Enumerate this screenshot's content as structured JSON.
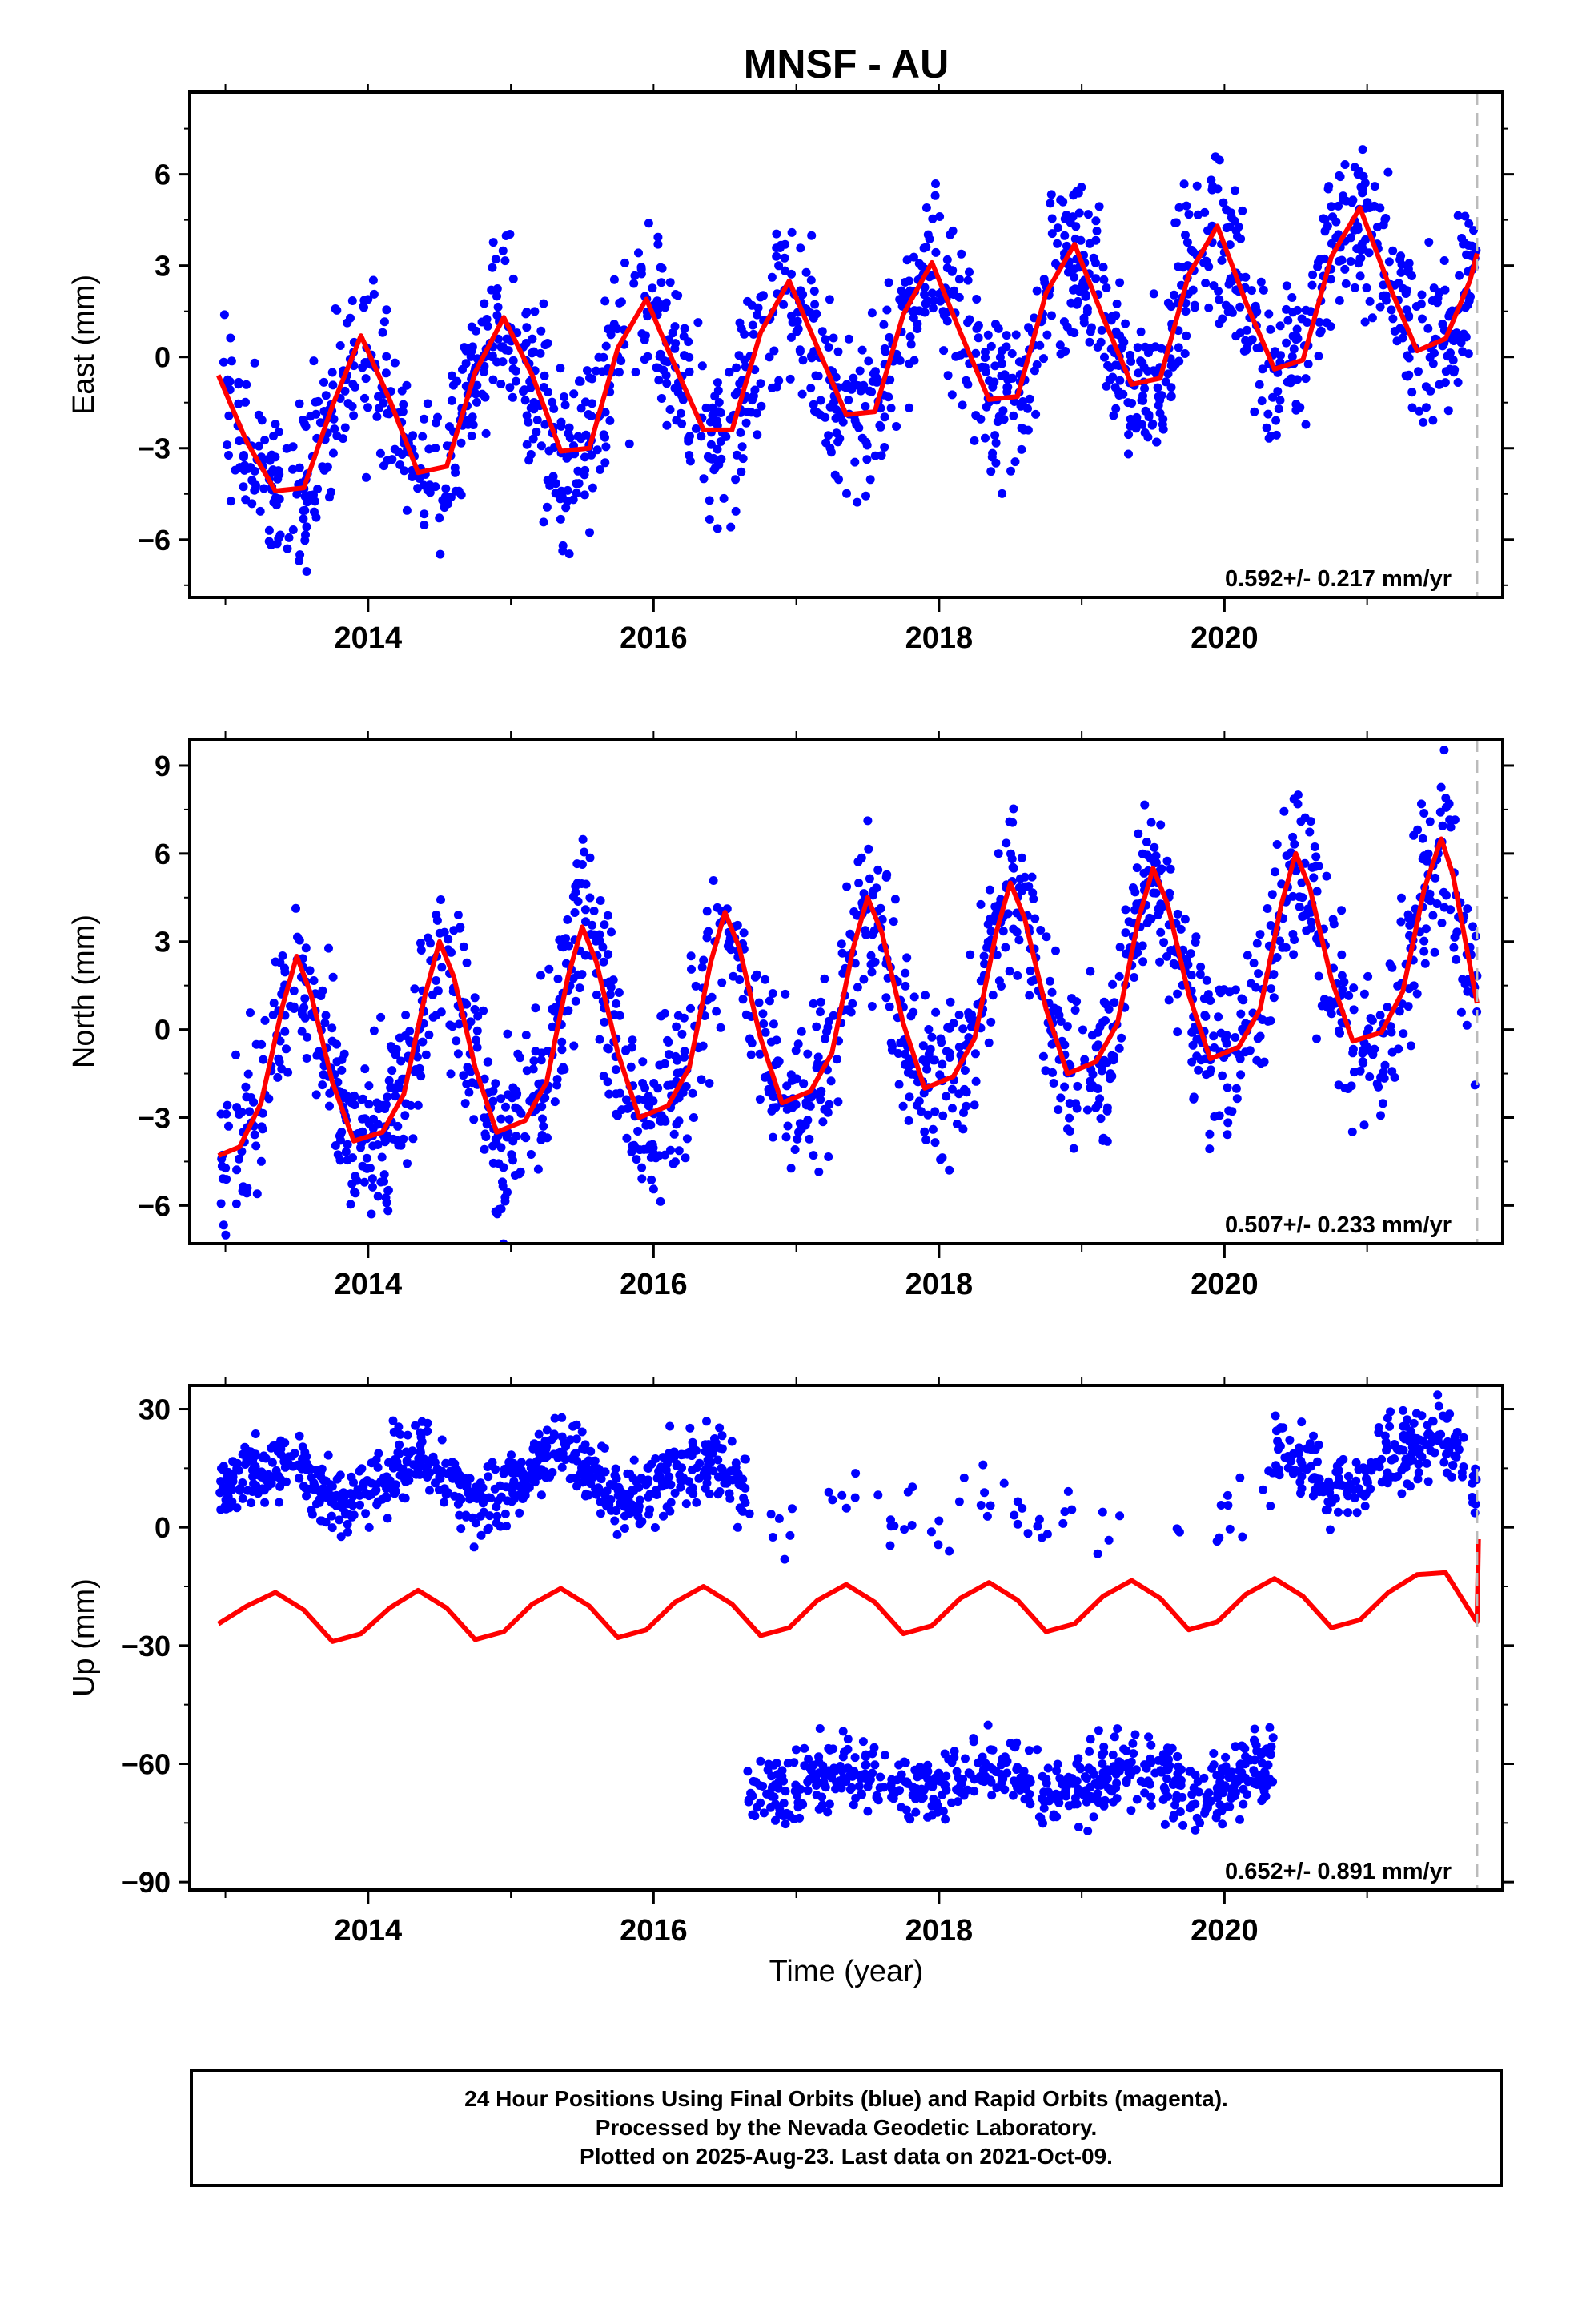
{
  "chart_data": {
    "title": "MNSF - AU",
    "type": "scatter",
    "x_tick_labels": [
      "2014",
      "2016",
      "2018",
      "2020"
    ],
    "x_axis_label": "Time (year)",
    "xlim": [
      2012.75,
      2021.95
    ],
    "last_data_marker": 2021.77,
    "colors": {
      "points": "#0000ff",
      "fit": "#ff0000",
      "marker": "#bbbbbb",
      "axes": "#000000"
    },
    "panels": [
      {
        "name": "east",
        "ylabel": "East (mm)",
        "ylim": [
          -7.9,
          8.7
        ],
        "yticks": [
          -6,
          -3,
          0,
          3,
          6
        ],
        "ytick_labels": [
          "−6",
          "−3",
          "0",
          "3",
          "6"
        ],
        "rate_label": "0.592+/- 0.217 mm/yr",
        "fit_series": {
          "x": [
            2012.95,
            2013.15,
            2013.35,
            2013.55,
            2013.75,
            2013.95,
            2014.15,
            2014.35,
            2014.55,
            2014.75,
            2014.95,
            2015.15,
            2015.35,
            2015.55,
            2015.75,
            2015.95,
            2016.15,
            2016.35,
            2016.55,
            2016.75,
            2016.95,
            2017.15,
            2017.35,
            2017.55,
            2017.75,
            2017.95,
            2018.15,
            2018.35,
            2018.55,
            2018.75,
            2018.95,
            2019.15,
            2019.35,
            2019.55,
            2019.75,
            2019.95,
            2020.15,
            2020.35,
            2020.55,
            2020.75,
            2020.95,
            2021.15,
            2021.35,
            2021.55,
            2021.72,
            2021.77
          ],
          "y": [
            -0.6,
            -2.8,
            -4.4,
            -4.3,
            -1.6,
            0.7,
            -1.4,
            -3.8,
            -3.6,
            -0.5,
            1.3,
            -0.6,
            -3.1,
            -3.0,
            0.3,
            1.9,
            -0.3,
            -2.4,
            -2.4,
            0.8,
            2.5,
            0.3,
            -1.9,
            -1.8,
            1.4,
            3.1,
            0.8,
            -1.4,
            -1.3,
            2.1,
            3.7,
            1.3,
            -0.9,
            -0.7,
            2.7,
            4.3,
            1.8,
            -0.4,
            -0.1,
            3.3,
            4.9,
            2.4,
            0.2,
            0.6,
            2.5,
            3.4
          ]
        }
      },
      {
        "name": "north",
        "ylabel": "North (mm)",
        "ylim": [
          -7.3,
          9.9
        ],
        "yticks": [
          -6,
          -3,
          0,
          3,
          6,
          9
        ],
        "ytick_labels": [
          "−6",
          "−3",
          "0",
          "3",
          "6",
          "9"
        ],
        "rate_label": "0.507+/- 0.233 mm/yr",
        "fit_series": {
          "x": [
            2012.95,
            2013.1,
            2013.25,
            2013.4,
            2013.5,
            2013.6,
            2013.75,
            2013.9,
            2014.1,
            2014.25,
            2014.4,
            2014.5,
            2014.6,
            2014.75,
            2014.9,
            2015.1,
            2015.25,
            2015.4,
            2015.5,
            2015.6,
            2015.75,
            2015.9,
            2016.1,
            2016.25,
            2016.4,
            2016.5,
            2016.6,
            2016.75,
            2016.9,
            2017.1,
            2017.25,
            2017.4,
            2017.5,
            2017.6,
            2017.75,
            2017.9,
            2018.1,
            2018.25,
            2018.4,
            2018.5,
            2018.6,
            2018.75,
            2018.9,
            2019.1,
            2019.25,
            2019.4,
            2019.5,
            2019.6,
            2019.75,
            2019.9,
            2020.1,
            2020.25,
            2020.4,
            2020.5,
            2020.6,
            2020.75,
            2020.9,
            2021.1,
            2021.25,
            2021.4,
            2021.52,
            2021.6,
            2021.77
          ],
          "y": [
            -4.3,
            -4.0,
            -2.5,
            0.8,
            2.5,
            1.2,
            -1.8,
            -3.8,
            -3.5,
            -2.2,
            1.2,
            3.0,
            1.8,
            -1.3,
            -3.5,
            -3.1,
            -1.8,
            1.8,
            3.5,
            2.3,
            -0.8,
            -3.0,
            -2.6,
            -1.3,
            2.3,
            4.0,
            2.8,
            -0.3,
            -2.5,
            -2.1,
            -0.8,
            2.8,
            4.5,
            3.3,
            0.2,
            -2.0,
            -1.6,
            -0.3,
            3.3,
            5.0,
            3.8,
            0.7,
            -1.5,
            -1.1,
            0.2,
            3.8,
            5.5,
            4.3,
            1.2,
            -1.0,
            -0.6,
            0.7,
            4.3,
            6.0,
            4.8,
            1.7,
            -0.4,
            -0.1,
            1.3,
            4.8,
            6.5,
            5.3,
            0.9
          ]
        }
      },
      {
        "name": "up",
        "ylabel": "Up (mm)",
        "ylim": [
          -92,
          36
        ],
        "yticks": [
          -90,
          -60,
          -30,
          0,
          30
        ],
        "ytick_labels": [
          "−90",
          "−60",
          "−30",
          "0",
          "30"
        ],
        "rate_label": "0.652+/- 0.891 mm/yr",
        "fit_series": {
          "x": [
            2012.95,
            2013.15,
            2013.35,
            2013.55,
            2013.75,
            2013.95,
            2014.15,
            2014.35,
            2014.55,
            2014.75,
            2014.95,
            2015.15,
            2015.35,
            2015.55,
            2015.75,
            2015.95,
            2016.15,
            2016.35,
            2016.55,
            2016.75,
            2016.95,
            2017.15,
            2017.35,
            2017.55,
            2017.75,
            2017.95,
            2018.15,
            2018.35,
            2018.55,
            2018.75,
            2018.95,
            2019.15,
            2019.35,
            2019.55,
            2019.75,
            2019.95,
            2020.15,
            2020.35,
            2020.55,
            2020.75,
            2020.95,
            2021.15,
            2021.35,
            2021.55,
            2021.75,
            2021.77,
            2021.78
          ],
          "y": [
            -24.5,
            -20,
            -16.5,
            -21,
            -29,
            -27,
            -20.5,
            -16,
            -20.5,
            -28.5,
            -26.5,
            -19.5,
            -15.5,
            -20,
            -28,
            -26,
            -19,
            -15,
            -19.5,
            -27.5,
            -25.5,
            -18.5,
            -14.5,
            -19,
            -27,
            -25,
            -18,
            -14,
            -18.5,
            -26.5,
            -24.5,
            -17.5,
            -13.5,
            -18,
            -26,
            -24,
            -17,
            -13,
            -17.5,
            -25.5,
            -23.5,
            -16.5,
            -12,
            -11.5,
            -23,
            -24,
            -3
          ]
        }
      }
    ],
    "footer_lines": [
      "24 Hour Positions Using Final Orbits (blue) and Rapid Orbits (magenta).",
      "Processed by the Nevada Geodetic Laboratory.",
      "Plotted on 2025-Aug-23. Last data on 2021-Oct-09."
    ]
  }
}
